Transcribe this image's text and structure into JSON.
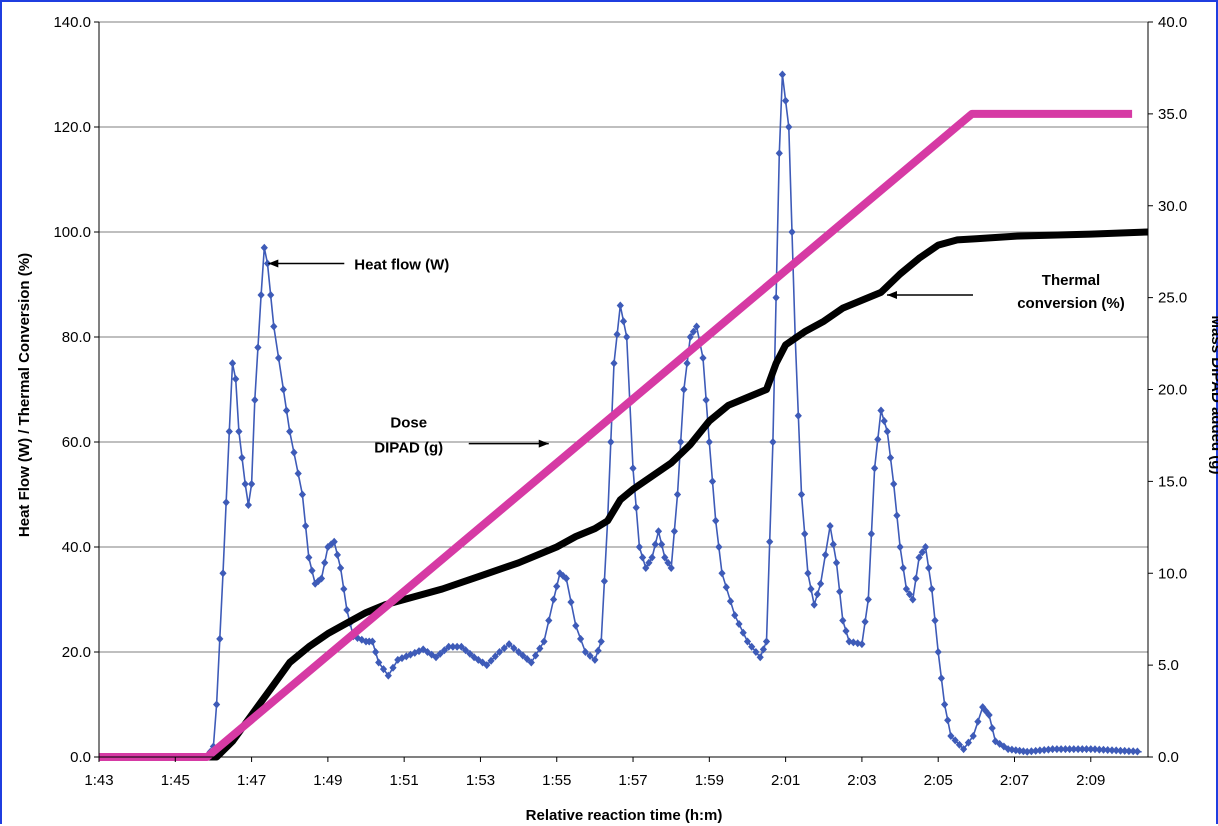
{
  "chart_data": {
    "type": "line",
    "xlabel": "Relative reaction time (h:m)",
    "ylabel_left": "Heat Flow (W) / Thermal Conversion (%)",
    "ylabel_right": "Mass DIPAD added (g)",
    "x_range": [
      "1:43",
      "2:10:30"
    ],
    "x_tick_labels": [
      "1:43",
      "1:45",
      "1:47",
      "1:49",
      "1:51",
      "1:53",
      "1:55",
      "1:57",
      "1:59",
      "2:01",
      "2:03",
      "2:05",
      "2:07",
      "2:09"
    ],
    "y_left_range": [
      0,
      140
    ],
    "y_left_ticks": [
      "0.0",
      "20.0",
      "40.0",
      "60.0",
      "80.0",
      "100.0",
      "120.0",
      "140.0"
    ],
    "y_right_range": [
      0,
      40
    ],
    "y_right_ticks": [
      "0.0",
      "5.0",
      "10.0",
      "15.0",
      "20.0",
      "25.0",
      "30.0",
      "35.0",
      "40.0"
    ],
    "grid": "horizontal",
    "colors": {
      "heat_flow": "#3e5bb8",
      "thermal_conversion": "#000000",
      "dose": "#d63aa4",
      "frame": "#1f3ee0"
    },
    "series": [
      {
        "name": "Heat flow (W)",
        "axis": "left",
        "marker": "diamond",
        "points": [
          [
            "1:43",
            0.0
          ],
          [
            "1:45",
            0.0
          ],
          [
            "1:45:50",
            0.0
          ],
          [
            "1:46:00",
            2.0
          ],
          [
            "1:46:05",
            10.0
          ],
          [
            "1:46:15",
            35.0
          ],
          [
            "1:46:25",
            62.0
          ],
          [
            "1:46:30",
            75.0
          ],
          [
            "1:46:35",
            72.0
          ],
          [
            "1:46:40",
            62.0
          ],
          [
            "1:46:50",
            52.0
          ],
          [
            "1:46:55",
            48.0
          ],
          [
            "1:47:00",
            52.0
          ],
          [
            "1:47:05",
            68.0
          ],
          [
            "1:47:15",
            88.0
          ],
          [
            "1:47:20",
            97.0
          ],
          [
            "1:47:25",
            94.0
          ],
          [
            "1:47:35",
            82.0
          ],
          [
            "1:47:50",
            70.0
          ],
          [
            "1:48:00",
            62.0
          ],
          [
            "1:48:20",
            50.0
          ],
          [
            "1:48:30",
            38.0
          ],
          [
            "1:48:40",
            33.0
          ],
          [
            "1:48:50",
            34.0
          ],
          [
            "1:49:00",
            40.0
          ],
          [
            "1:49:10",
            41.0
          ],
          [
            "1:49:20",
            36.0
          ],
          [
            "1:49:30",
            28.0
          ],
          [
            "1:49:40",
            23.0
          ],
          [
            "1:50:00",
            22.0
          ],
          [
            "1:50:10",
            22.0
          ],
          [
            "1:50:20",
            18.0
          ],
          [
            "1:50:35",
            15.5
          ],
          [
            "1:50:50",
            18.5
          ],
          [
            "1:51:10",
            19.5
          ],
          [
            "1:51:30",
            20.5
          ],
          [
            "1:51:50",
            19.0
          ],
          [
            "1:52:10",
            21.0
          ],
          [
            "1:52:30",
            21.0
          ],
          [
            "1:52:50",
            19.0
          ],
          [
            "1:53:10",
            17.5
          ],
          [
            "1:53:30",
            20.0
          ],
          [
            "1:53:45",
            21.5
          ],
          [
            "1:54:00",
            20.0
          ],
          [
            "1:54:20",
            18.0
          ],
          [
            "1:54:40",
            22.0
          ],
          [
            "1:54:55",
            30.0
          ],
          [
            "1:55:05",
            35.0
          ],
          [
            "1:55:15",
            34.0
          ],
          [
            "1:55:30",
            25.0
          ],
          [
            "1:55:45",
            20.0
          ],
          [
            "1:56:00",
            18.5
          ],
          [
            "1:56:10",
            22.0
          ],
          [
            "1:56:20",
            45.0
          ],
          [
            "1:56:30",
            75.0
          ],
          [
            "1:56:40",
            86.0
          ],
          [
            "1:56:50",
            80.0
          ],
          [
            "1:57:00",
            55.0
          ],
          [
            "1:57:10",
            40.0
          ],
          [
            "1:57:20",
            36.0
          ],
          [
            "1:57:30",
            38.0
          ],
          [
            "1:57:40",
            43.0
          ],
          [
            "1:57:50",
            38.0
          ],
          [
            "1:58:00",
            36.0
          ],
          [
            "1:58:10",
            50.0
          ],
          [
            "1:58:20",
            70.0
          ],
          [
            "1:58:30",
            80.0
          ],
          [
            "1:58:40",
            82.0
          ],
          [
            "1:58:50",
            76.0
          ],
          [
            "1:59:00",
            60.0
          ],
          [
            "1:59:10",
            45.0
          ],
          [
            "1:59:20",
            35.0
          ],
          [
            "1:59:40",
            27.0
          ],
          [
            "2:00:00",
            22.0
          ],
          [
            "2:00:20",
            19.0
          ],
          [
            "2:00:30",
            22.0
          ],
          [
            "2:00:40",
            60.0
          ],
          [
            "2:00:50",
            115.0
          ],
          [
            "2:00:55",
            130.0
          ],
          [
            "2:01:05",
            120.0
          ],
          [
            "2:01:15",
            80.0
          ],
          [
            "2:01:25",
            50.0
          ],
          [
            "2:01:35",
            35.0
          ],
          [
            "2:01:45",
            29.0
          ],
          [
            "2:01:55",
            33.0
          ],
          [
            "2:02:10",
            44.0
          ],
          [
            "2:02:20",
            37.0
          ],
          [
            "2:02:30",
            26.0
          ],
          [
            "2:02:40",
            22.0
          ],
          [
            "2:03:00",
            21.5
          ],
          [
            "2:03:10",
            30.0
          ],
          [
            "2:03:20",
            55.0
          ],
          [
            "2:03:30",
            66.0
          ],
          [
            "2:03:40",
            62.0
          ],
          [
            "2:03:50",
            52.0
          ],
          [
            "2:04:00",
            40.0
          ],
          [
            "2:04:10",
            32.0
          ],
          [
            "2:04:20",
            30.0
          ],
          [
            "2:04:30",
            38.0
          ],
          [
            "2:04:40",
            40.0
          ],
          [
            "2:04:50",
            32.0
          ],
          [
            "2:05:00",
            20.0
          ],
          [
            "2:05:10",
            10.0
          ],
          [
            "2:05:20",
            4.0
          ],
          [
            "2:05:40",
            1.5
          ],
          [
            "2:05:55",
            4.0
          ],
          [
            "2:06:10",
            9.5
          ],
          [
            "2:06:20",
            8.0
          ],
          [
            "2:06:30",
            3.0
          ],
          [
            "2:06:50",
            1.5
          ],
          [
            "2:07:20",
            1.0
          ],
          [
            "2:08:00",
            1.5
          ],
          [
            "2:09:00",
            1.5
          ],
          [
            "2:10:20",
            1.0
          ]
        ]
      },
      {
        "name": "Thermal conversion (%)",
        "axis": "left",
        "points": [
          [
            "1:43",
            0.0
          ],
          [
            "1:46:05",
            0.0
          ],
          [
            "1:46:30",
            3.0
          ],
          [
            "1:47:00",
            8.0
          ],
          [
            "1:47:30",
            13.0
          ],
          [
            "1:48:00",
            18.0
          ],
          [
            "1:48:30",
            21.0
          ],
          [
            "1:49:00",
            23.5
          ],
          [
            "1:49:30",
            25.5
          ],
          [
            "1:50:00",
            27.5
          ],
          [
            "1:50:30",
            29.0
          ],
          [
            "1:51:00",
            30.0
          ],
          [
            "1:52:00",
            32.0
          ],
          [
            "1:53:00",
            34.5
          ],
          [
            "1:54:00",
            37.0
          ],
          [
            "1:55:00",
            40.0
          ],
          [
            "1:55:30",
            42.0
          ],
          [
            "1:56:00",
            43.5
          ],
          [
            "1:56:20",
            45.0
          ],
          [
            "1:56:40",
            49.0
          ],
          [
            "1:57:00",
            51.0
          ],
          [
            "1:57:30",
            53.5
          ],
          [
            "1:58:00",
            56.0
          ],
          [
            "1:58:30",
            59.5
          ],
          [
            "1:59:00",
            64.0
          ],
          [
            "1:59:30",
            67.0
          ],
          [
            "2:00:00",
            68.5
          ],
          [
            "2:00:30",
            70.0
          ],
          [
            "2:00:45",
            75.0
          ],
          [
            "2:01:00",
            78.5
          ],
          [
            "2:01:30",
            81.0
          ],
          [
            "2:02:00",
            83.0
          ],
          [
            "2:02:30",
            85.5
          ],
          [
            "2:03:00",
            87.0
          ],
          [
            "2:03:30",
            88.5
          ],
          [
            "2:04:00",
            92.0
          ],
          [
            "2:04:30",
            95.0
          ],
          [
            "2:05:00",
            97.5
          ],
          [
            "2:05:30",
            98.5
          ],
          [
            "2:06:00",
            98.7
          ],
          [
            "2:07:00",
            99.2
          ],
          [
            "2:08:00",
            99.4
          ],
          [
            "2:09:00",
            99.6
          ],
          [
            "2:10:30",
            100.0
          ]
        ]
      },
      {
        "name": "Dose DIPAD (g)",
        "axis": "right",
        "points": [
          [
            "1:43",
            0.0
          ],
          [
            "1:45:50",
            0.0
          ],
          [
            "2:05:53",
            35.0
          ],
          [
            "2:10:05",
            35.0
          ]
        ]
      }
    ],
    "annotations": [
      {
        "text": "Heat flow (W)",
        "series": "Heat flow (W)",
        "at": [
          "1:47:20",
          94.0
        ]
      },
      {
        "text_lines": [
          "Thermal",
          "conversion (%)"
        ],
        "series": "Thermal conversion (%)",
        "at": [
          "2:03:30",
          88.0
        ]
      },
      {
        "text_lines": [
          "Dose",
          "DIPAD (g)"
        ],
        "series": "Dose DIPAD (g)",
        "at": [
          "1:55:00",
          17.0
        ]
      }
    ]
  }
}
